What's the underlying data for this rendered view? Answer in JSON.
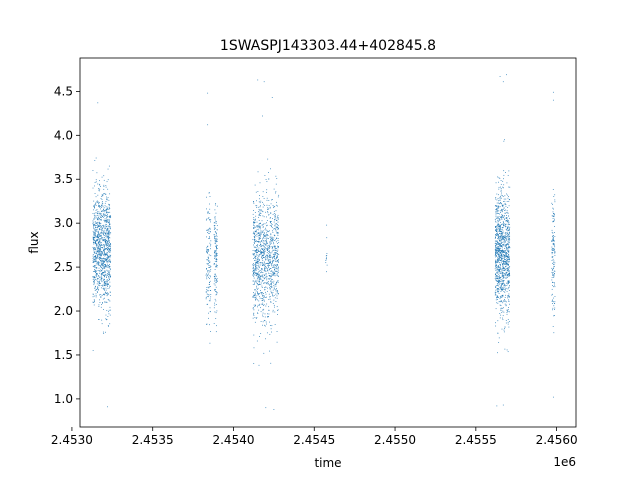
{
  "chart_data": {
    "type": "scatter",
    "title": "1SWASPJ143303.44+402845.8",
    "xlabel": "time",
    "ylabel": "flux",
    "x_offset_label": "1e6",
    "xlim": [
      2.45305,
      2.45612
    ],
    "ylim": [
      0.68,
      4.88
    ],
    "x_ticks": [
      2.453,
      2.4535,
      2.454,
      2.4545,
      2.455,
      2.4555,
      2.456
    ],
    "x_tick_labels": [
      "2.4530",
      "2.4535",
      "2.4540",
      "2.4545",
      "2.4550",
      "2.4555",
      "2.4560"
    ],
    "y_ticks": [
      1.0,
      1.5,
      2.0,
      2.5,
      3.0,
      3.5,
      4.0,
      4.5
    ],
    "y_tick_labels": [
      "1.0",
      "1.5",
      "2.0",
      "2.5",
      "3.0",
      "3.5",
      "4.0",
      "4.5"
    ],
    "grid": false,
    "marker_color": "#1f77b4",
    "clusters": [
      {
        "x_range": [
          2.45313,
          2.45324
        ],
        "y_center": 2.7,
        "y_spread": 0.33,
        "density": "dense"
      },
      {
        "x_range": [
          2.45383,
          2.45386
        ],
        "y_center": 2.55,
        "y_spread": 0.35,
        "density": "sparse"
      },
      {
        "x_range": [
          2.45388,
          2.4539
        ],
        "y_center": 2.55,
        "y_spread": 0.3,
        "density": "sparse"
      },
      {
        "x_range": [
          2.45412,
          2.45428
        ],
        "y_center": 2.6,
        "y_spread": 0.36,
        "density": "dense"
      },
      {
        "x_range": [
          2.45457,
          2.45458
        ],
        "y_center": 2.62,
        "y_spread": 0.15,
        "density": "very-sparse"
      },
      {
        "x_range": [
          2.45562,
          2.45571
        ],
        "y_center": 2.65,
        "y_spread": 0.36,
        "density": "dense"
      },
      {
        "x_range": [
          2.45597,
          2.45599
        ],
        "y_center": 2.65,
        "y_spread": 0.35,
        "density": "sparse"
      }
    ],
    "outliers": [
      {
        "x": 2.45316,
        "y": 4.37
      },
      {
        "x": 2.45322,
        "y": 0.91
      },
      {
        "x": 2.45384,
        "y": 4.48
      },
      {
        "x": 2.45384,
        "y": 4.12
      },
      {
        "x": 2.45415,
        "y": 4.63
      },
      {
        "x": 2.45419,
        "y": 4.61
      },
      {
        "x": 2.45424,
        "y": 4.43
      },
      {
        "x": 2.45418,
        "y": 4.22
      },
      {
        "x": 2.4542,
        "y": 0.9
      },
      {
        "x": 2.45425,
        "y": 0.88
      },
      {
        "x": 2.45565,
        "y": 4.67
      },
      {
        "x": 2.45569,
        "y": 4.69
      },
      {
        "x": 2.45567,
        "y": 4.61
      },
      {
        "x": 2.45563,
        "y": 0.92
      },
      {
        "x": 2.45567,
        "y": 0.93
      },
      {
        "x": 2.45598,
        "y": 4.49
      },
      {
        "x": 2.45598,
        "y": 4.4
      },
      {
        "x": 2.45598,
        "y": 1.02
      }
    ]
  }
}
